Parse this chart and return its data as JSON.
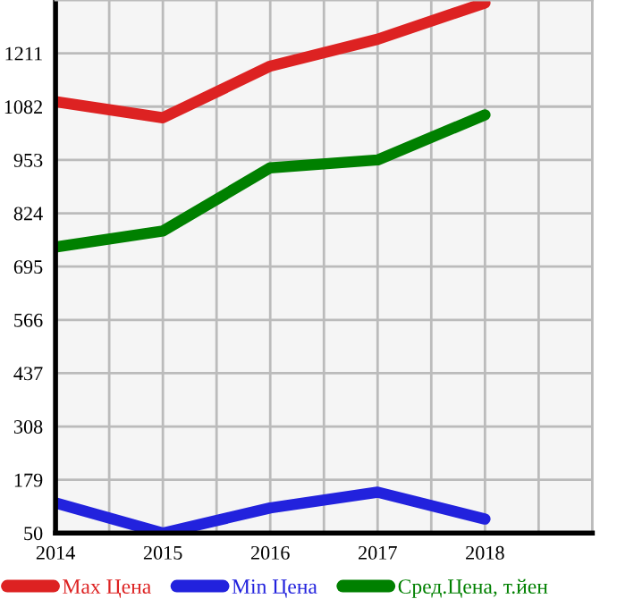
{
  "chart_data": {
    "type": "line",
    "x": [
      2014,
      2015,
      2016,
      2017,
      2018
    ],
    "series": [
      {
        "name": "Max Цена",
        "color": "#dd2222",
        "values": [
          1094,
          1055,
          1180,
          1245,
          1333
        ]
      },
      {
        "name": "Min Цена",
        "color": "#2222dd",
        "values": [
          123,
          50,
          111,
          149,
          84
        ]
      },
      {
        "name": "Сред.Цена, т.йен",
        "color": "#008000",
        "values": [
          742,
          781,
          934,
          953,
          1062
        ]
      }
    ],
    "xlim": [
      2014,
      2019
    ],
    "xticks": [
      2014,
      {
        "value": 2014.5,
        "label": null
      },
      2015,
      {
        "value": 2015.5,
        "label": null
      },
      2016,
      {
        "value": 2016.5,
        "label": null
      },
      2017,
      {
        "value": 2017.5,
        "label": null
      },
      2018,
      {
        "value": 2018.5,
        "label": null
      },
      {
        "value": 2019,
        "label": null
      }
    ],
    "ylim": [
      50,
      1340
    ],
    "yticks": [
      50,
      179,
      308,
      437,
      566,
      695,
      824,
      953,
      1082,
      1211
    ],
    "grid": true,
    "legend": "bottom",
    "marker": "none",
    "line_style": "solid"
  }
}
